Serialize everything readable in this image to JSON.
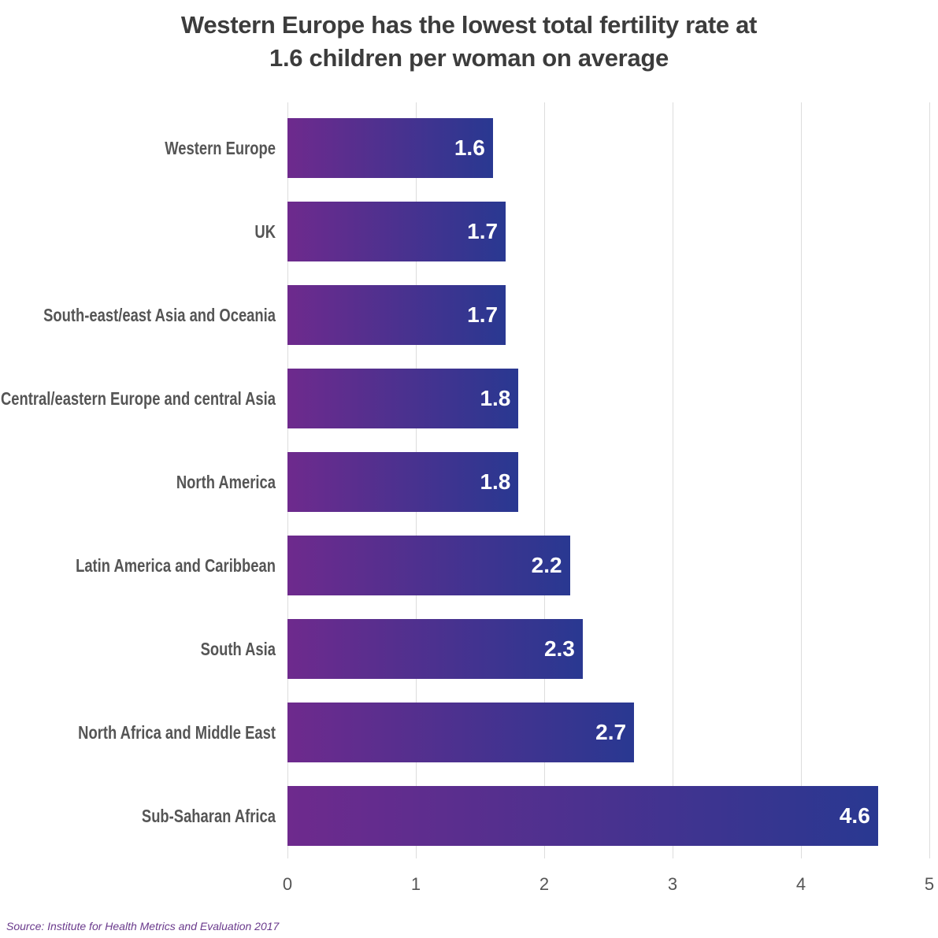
{
  "chart_data": {
    "type": "bar",
    "orientation": "horizontal",
    "title": [
      "Western Europe has the lowest total fertility rate at",
      "1.6 children per woman on average"
    ],
    "categories": [
      "Western Europe",
      "UK",
      "South-east/east Asia and Oceania",
      "Central/eastern Europe and central Asia",
      "North America",
      "Latin America and Caribbean",
      "South Asia",
      "North Africa and Middle East",
      "Sub-Saharan Africa"
    ],
    "values": [
      1.6,
      1.7,
      1.7,
      1.8,
      1.8,
      2.2,
      2.3,
      2.7,
      4.6
    ],
    "gradient": [
      "#6e2a8d",
      "#293891"
    ],
    "xlim": [
      0,
      5
    ],
    "xticks": [
      0,
      1,
      2,
      3,
      4,
      5
    ],
    "grid": true,
    "source": "Source: Institute for Health Metrics and Evaluation 2017"
  }
}
